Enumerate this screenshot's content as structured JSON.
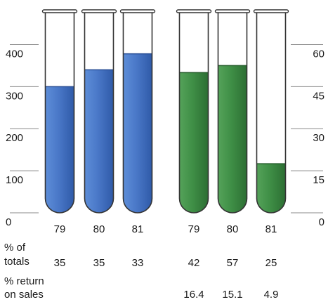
{
  "chart_data": {
    "type": "bar",
    "style": "test-tubes",
    "left_axis": {
      "ticks": [
        "0",
        "100",
        "200",
        "300",
        "400"
      ],
      "range": [
        0,
        450
      ]
    },
    "right_axis": {
      "ticks": [
        "0",
        "15",
        "30",
        "45",
        "60"
      ],
      "range": [
        0,
        67.5
      ]
    },
    "colors": {
      "blue": "#4a78c8",
      "green": "#3f8f46",
      "tube": "#333333"
    },
    "series": [
      {
        "color": "blue",
        "axis": "left",
        "categories": [
          "79",
          "80",
          "81"
        ],
        "values": [
          300,
          340,
          378
        ]
      },
      {
        "color": "green",
        "axis": "right",
        "categories": [
          "79",
          "80",
          "81"
        ],
        "values": [
          50,
          52.5,
          17.5
        ]
      }
    ],
    "row1": {
      "label_line1": "% of",
      "label_line2": "totals",
      "values": [
        "35",
        "35",
        "33",
        "42",
        "57",
        "25"
      ]
    },
    "row2": {
      "label_line1": "% return",
      "label_line2": "on sales",
      "values": [
        "",
        "",
        "",
        "16.4",
        "15.1",
        "4.9"
      ]
    }
  }
}
